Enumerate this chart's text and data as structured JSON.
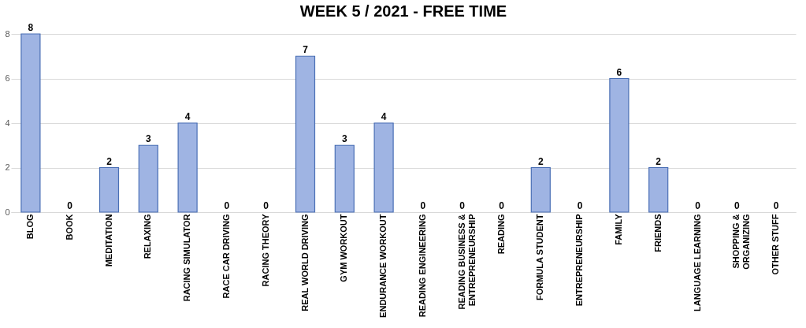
{
  "chart_data": {
    "type": "bar",
    "title": "WEEK 5 / 2021 - FREE TIME",
    "categories": [
      "BLOG",
      "BOOK",
      "MEDITATION",
      "RELAXING",
      "RACING SIMULATOR",
      "RACE CAR DRIVING",
      "RACING THEORY",
      "REAL WORLD DRIVING",
      "GYM WORKOUT",
      "ENDURANCE WORKOUT",
      "READING ENGINEERING",
      "READING BUSINESS & ENTREPRENEURSHIP",
      "READING",
      "FORMULA STUDENT",
      "ENTREPRENEURSHIP",
      "FAMILY",
      "FRIENDS",
      "LANGUAGE LEARNING",
      "SHOPPING & ORGANIZING",
      "OTHER STUFF"
    ],
    "values": [
      8,
      0,
      2,
      3,
      4,
      0,
      0,
      7,
      3,
      4,
      0,
      0,
      0,
      2,
      0,
      6,
      2,
      0,
      0,
      0
    ],
    "color": "#9fb4e3",
    "ylim": [
      0,
      8
    ],
    "yticks": [
      0,
      2,
      4,
      6,
      8
    ],
    "grid": "y",
    "data_labels": true
  }
}
